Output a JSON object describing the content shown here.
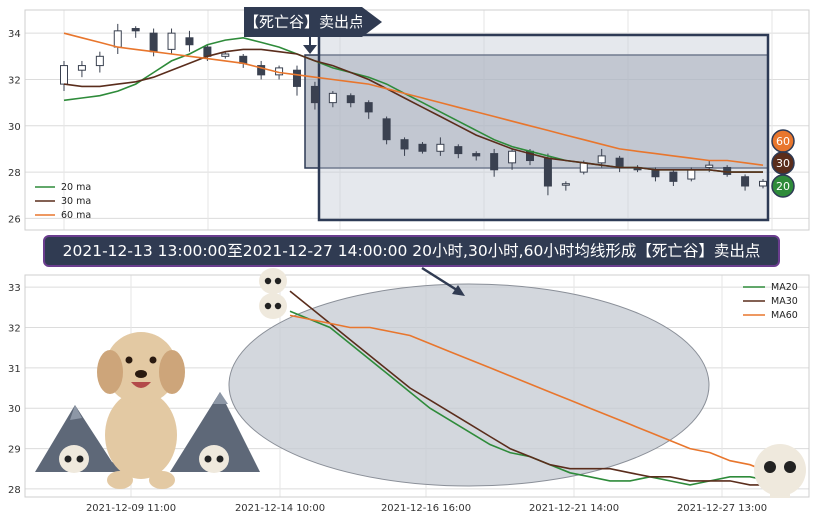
{
  "banner_text": "2021-12-13 13:00:00至2021-12-27 14:00:00 20小时,30小时,60小时均线形成【死亡谷】卖出点",
  "tag_text": "【死亡谷】卖出点",
  "badges": [
    "60",
    "30",
    "20"
  ],
  "colors": {
    "ma20": "#2e8b3a",
    "ma30": "#5a2d1c",
    "ma60": "#e8762d",
    "box": "#2d3a55",
    "candle": "#3a4150"
  },
  "chart_data": [
    {
      "type": "candlestick",
      "ylim": [
        25.5,
        35
      ],
      "yticks": [
        "26",
        "28",
        "30",
        "32",
        "34"
      ],
      "grid": true,
      "legend_position": "bottom-left",
      "series": [
        {
          "name": "20 ma",
          "values": [
            31.1,
            31.2,
            31.3,
            31.5,
            31.8,
            32.3,
            32.8,
            33.1,
            33.5,
            33.7,
            33.8,
            33.6,
            33.4,
            33.1,
            32.8,
            32.5,
            32.3,
            32.1,
            31.8,
            31.4,
            31.0,
            30.6,
            30.2,
            29.8,
            29.4,
            29.1,
            28.9,
            28.7,
            28.5,
            28.4,
            28.3,
            28.2,
            28.2,
            28.1,
            28.1,
            28.1,
            28.1,
            28.0,
            28.0,
            28.0
          ]
        },
        {
          "name": "30 ma",
          "values": [
            31.8,
            31.7,
            31.7,
            31.8,
            31.9,
            32.1,
            32.4,
            32.7,
            33.0,
            33.2,
            33.3,
            33.3,
            33.2,
            33.1,
            32.8,
            32.6,
            32.3,
            32.0,
            31.6,
            31.2,
            30.8,
            30.4,
            30.0,
            29.6,
            29.3,
            29.0,
            28.8,
            28.6,
            28.5,
            28.4,
            28.3,
            28.2,
            28.2,
            28.1,
            28.1,
            28.1,
            28.1,
            28.0,
            28.0,
            28.0
          ]
        },
        {
          "name": "60 ma",
          "values": [
            34.0,
            33.8,
            33.6,
            33.4,
            33.3,
            33.2,
            33.1,
            33.0,
            32.9,
            32.8,
            32.7,
            32.5,
            32.3,
            32.2,
            32.1,
            32.0,
            31.9,
            31.8,
            31.6,
            31.4,
            31.2,
            31.0,
            30.8,
            30.6,
            30.4,
            30.2,
            30.0,
            29.8,
            29.6,
            29.4,
            29.2,
            29.0,
            28.9,
            28.8,
            28.7,
            28.6,
            28.5,
            28.5,
            28.4,
            28.3
          ]
        }
      ],
      "candles": [
        [
          31.8,
          32.6,
          31.5,
          32.8
        ],
        [
          32.4,
          32.6,
          32.1,
          32.8
        ],
        [
          32.6,
          33.0,
          32.3,
          33.2
        ],
        [
          33.4,
          34.1,
          33.1,
          34.4
        ],
        [
          34.2,
          34.1,
          33.8,
          34.3
        ],
        [
          34.0,
          33.2,
          33.0,
          34.2
        ],
        [
          33.3,
          34.0,
          33.1,
          34.2
        ],
        [
          33.8,
          33.5,
          33.2,
          34.1
        ],
        [
          33.4,
          33.0,
          32.8,
          33.5
        ],
        [
          33.0,
          33.1,
          32.9,
          33.2
        ],
        [
          33.0,
          32.7,
          32.5,
          33.1
        ],
        [
          32.6,
          32.2,
          32.0,
          32.8
        ],
        [
          32.2,
          32.5,
          32.0,
          32.6
        ],
        [
          32.4,
          31.7,
          31.3,
          32.6
        ],
        [
          31.7,
          31.0,
          30.7,
          31.9
        ],
        [
          31.0,
          31.4,
          30.8,
          31.5
        ],
        [
          31.3,
          31.0,
          30.8,
          31.4
        ],
        [
          31.0,
          30.6,
          30.3,
          31.1
        ],
        [
          30.3,
          29.4,
          29.2,
          30.4
        ],
        [
          29.4,
          29.0,
          28.7,
          29.5
        ],
        [
          29.2,
          28.9,
          28.8,
          29.3
        ],
        [
          28.9,
          29.2,
          28.7,
          29.5
        ],
        [
          29.1,
          28.8,
          28.6,
          29.2
        ],
        [
          28.8,
          28.7,
          28.5,
          28.9
        ],
        [
          28.8,
          28.1,
          27.8,
          29.0
        ],
        [
          28.4,
          28.9,
          28.1,
          29.0
        ],
        [
          28.9,
          28.5,
          28.3,
          29.0
        ],
        [
          28.6,
          27.4,
          27.0,
          28.8
        ],
        [
          27.5,
          27.5,
          27.2,
          27.6
        ],
        [
          28.0,
          28.4,
          27.9,
          28.5
        ],
        [
          28.4,
          28.7,
          28.2,
          29.0
        ],
        [
          28.6,
          28.2,
          28.0,
          28.7
        ],
        [
          28.2,
          28.1,
          28.0,
          28.3
        ],
        [
          28.1,
          27.8,
          27.6,
          28.2
        ],
        [
          28.0,
          27.6,
          27.4,
          28.1
        ],
        [
          27.7,
          28.1,
          27.6,
          28.2
        ],
        [
          28.2,
          28.3,
          28.0,
          28.5
        ],
        [
          28.2,
          27.9,
          27.8,
          28.3
        ],
        [
          27.8,
          27.4,
          27.2,
          27.9
        ],
        [
          27.4,
          27.6,
          27.3,
          27.7
        ]
      ]
    },
    {
      "type": "line",
      "ylim": [
        27.8,
        33.3
      ],
      "yticks": [
        "28",
        "29",
        "30",
        "31",
        "32",
        "33"
      ],
      "x_tick_labels": [
        "2021-12-09 11:00",
        "2021-12-14 10:00",
        "2021-12-16 16:00",
        "2021-12-21 14:00",
        "2021-12-27 13:00"
      ],
      "grid": true,
      "legend_position": "top-right",
      "series": [
        {
          "name": "MA20",
          "values": [
            32.4,
            32.2,
            32.0,
            31.6,
            31.2,
            30.8,
            30.4,
            30.0,
            29.7,
            29.4,
            29.1,
            28.9,
            28.8,
            28.6,
            28.4,
            28.3,
            28.2,
            28.2,
            28.3,
            28.2,
            28.1,
            28.2,
            28.3,
            28.3,
            28.2
          ]
        },
        {
          "name": "MA30",
          "values": [
            32.9,
            32.5,
            32.1,
            31.7,
            31.3,
            30.9,
            30.5,
            30.2,
            29.9,
            29.6,
            29.3,
            29.0,
            28.8,
            28.6,
            28.5,
            28.5,
            28.5,
            28.4,
            28.3,
            28.3,
            28.2,
            28.2,
            28.2,
            28.1,
            28.1
          ]
        },
        {
          "name": "MA60",
          "values": [
            32.3,
            32.2,
            32.1,
            32.0,
            32.0,
            31.9,
            31.8,
            31.6,
            31.4,
            31.2,
            31.0,
            30.8,
            30.6,
            30.4,
            30.2,
            30.0,
            29.8,
            29.6,
            29.4,
            29.2,
            29.0,
            28.9,
            28.7,
            28.6,
            28.4
          ]
        }
      ]
    }
  ]
}
